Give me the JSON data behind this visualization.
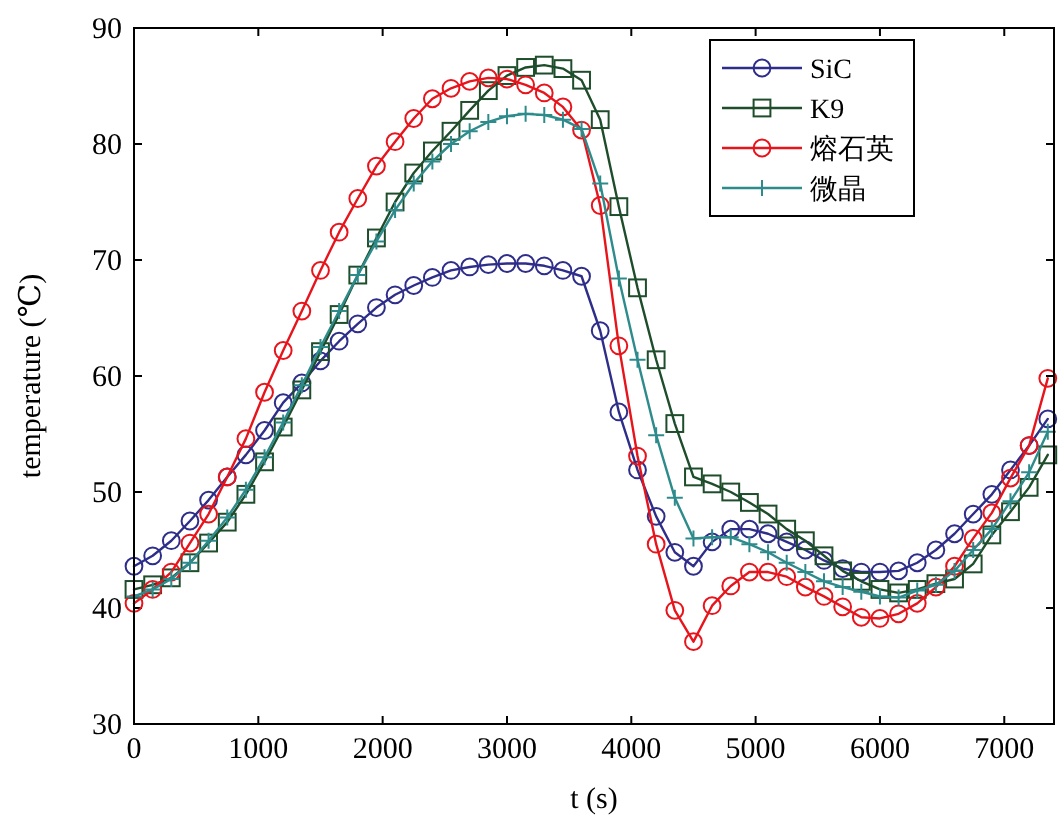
{
  "chart_data": {
    "type": "line",
    "xlabel": "t (s)",
    "ylabel": "temperature (℃)",
    "x": [
      0,
      150,
      300,
      450,
      600,
      750,
      900,
      1050,
      1200,
      1350,
      1500,
      1650,
      1800,
      1950,
      2100,
      2250,
      2400,
      2550,
      2700,
      2850,
      3000,
      3150,
      3300,
      3450,
      3600,
      3750,
      3900,
      4050,
      4200,
      4350,
      4500,
      4650,
      4800,
      4950,
      5100,
      5250,
      5400,
      5550,
      5700,
      5850,
      6000,
      6150,
      6300,
      6450,
      6600,
      6750,
      6900,
      7050,
      7200,
      7350
    ],
    "series": [
      {
        "name": "SiC",
        "color": "#2e2e8a",
        "marker": "circle",
        "values": [
          43.6,
          44.5,
          45.8,
          47.5,
          49.3,
          51.3,
          53.2,
          55.3,
          57.7,
          59.4,
          61.3,
          63,
          64.5,
          65.9,
          67,
          67.8,
          68.5,
          69.1,
          69.4,
          69.6,
          69.7,
          69.7,
          69.5,
          69.1,
          68.6,
          63.9,
          56.9,
          51.9,
          47.9,
          44.8,
          43.6,
          45.7,
          46.8,
          46.8,
          46.4,
          45.7,
          45,
          44.1,
          43.4,
          43.1,
          43.1,
          43.2,
          43.9,
          45,
          46.4,
          48.1,
          49.8,
          51.9,
          54,
          56.3
        ]
      },
      {
        "name": "K9",
        "color": "#1e4d2b",
        "marker": "square",
        "values": [
          41.6,
          42,
          42.6,
          43.9,
          45.6,
          47.4,
          49.8,
          52.6,
          55.6,
          58.8,
          62.1,
          65.3,
          68.7,
          71.9,
          75,
          77.5,
          79.4,
          81.1,
          82.9,
          84.6,
          85.9,
          86.6,
          86.8,
          86.5,
          85.5,
          82.1,
          74.6,
          67.6,
          61.4,
          55.9,
          51.3,
          50.7,
          50,
          49.1,
          48.1,
          46.8,
          45.8,
          44.5,
          43.2,
          42.3,
          41.6,
          41.3,
          41.6,
          42.1,
          42.5,
          43.8,
          46.3,
          48.3,
          50.4,
          53.2
        ]
      },
      {
        "name": "熔石英",
        "color": "#e8141c",
        "marker": "circle",
        "values": [
          40.4,
          41.6,
          43.1,
          45.6,
          48.1,
          51.3,
          54.6,
          58.6,
          62.2,
          65.6,
          69.1,
          72.4,
          75.3,
          78.1,
          80.2,
          82.2,
          83.9,
          84.8,
          85.4,
          85.7,
          85.6,
          85.1,
          84.4,
          83.2,
          81.2,
          74.7,
          62.6,
          53.1,
          45.5,
          39.8,
          37.1,
          40.2,
          41.9,
          43.1,
          43.1,
          42.7,
          41.8,
          41,
          40.1,
          39.2,
          39.1,
          39.5,
          40.4,
          41.8,
          43.6,
          46,
          48.2,
          51.2,
          54,
          59.8
        ]
      },
      {
        "name": "微晶",
        "color": "#2e8b8b",
        "marker": "cross",
        "values": [
          41,
          41.6,
          42.5,
          43.9,
          45.8,
          47.8,
          50.2,
          53,
          56,
          59.2,
          62.5,
          65.6,
          68.7,
          71.6,
          74.3,
          76.6,
          78.5,
          80,
          81.1,
          81.9,
          82.4,
          82.6,
          82.5,
          82.1,
          81.3,
          76.6,
          68.4,
          61.4,
          54.9,
          49.5,
          46,
          46.1,
          46.1,
          45.5,
          44.8,
          43.9,
          43.1,
          42.3,
          41.8,
          41.4,
          41,
          40.9,
          41.5,
          42,
          43.2,
          45,
          46.8,
          49.2,
          51.7,
          55.2
        ]
      }
    ],
    "xlim": [
      0,
      7400
    ],
    "xticks": [
      0,
      1000,
      2000,
      3000,
      4000,
      5000,
      6000,
      7000
    ],
    "ylim": [
      30,
      90
    ],
    "yticks": [
      30,
      40,
      50,
      60,
      70,
      80,
      90
    ],
    "grid": false,
    "legend": "top right",
    "line_style": "solid"
  }
}
